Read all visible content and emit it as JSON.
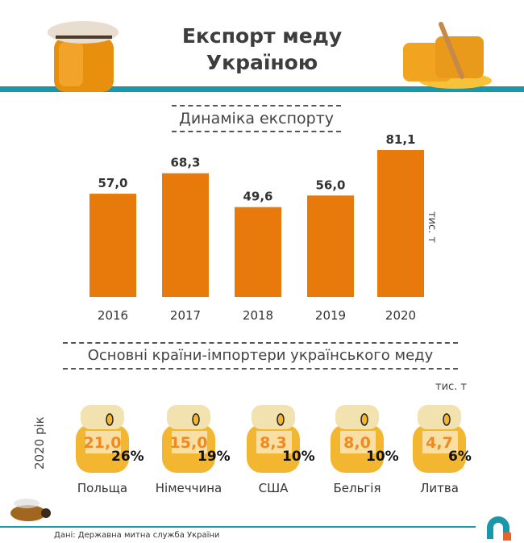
{
  "header": {
    "title_line1": "Експорт меду",
    "title_line2": "Україною"
  },
  "colors": {
    "accent": "#1a97a8",
    "bar": "#e87a0c",
    "honey": "#f2b630"
  },
  "chart_data": {
    "type": "bar",
    "title": "Динаміка експорту",
    "ylabel": "тис. т",
    "categories": [
      "2016",
      "2017",
      "2018",
      "2019",
      "2020"
    ],
    "values": [
      57.0,
      68.3,
      49.6,
      56.0,
      81.1
    ],
    "value_labels": [
      "57,0",
      "68,3",
      "49,6",
      "56,0",
      "81,1"
    ],
    "grid": false
  },
  "importers": {
    "title": "Основні країни-імпортери українського меду",
    "unit": "тис. т",
    "year_label": "2020 рік",
    "items": [
      {
        "country": "Польща",
        "value": "21,0",
        "share": "26%"
      },
      {
        "country": "Німеччина",
        "value": "15,0",
        "share": "19%"
      },
      {
        "country": "США",
        "value": "8,3",
        "share": "10%"
      },
      {
        "country": "Бельгія",
        "value": "8,0",
        "share": "10%"
      },
      {
        "country": "Литва",
        "value": "4,7",
        "share": "6%"
      }
    ]
  },
  "footer": {
    "source": "Дані: Державна митна служба України"
  }
}
